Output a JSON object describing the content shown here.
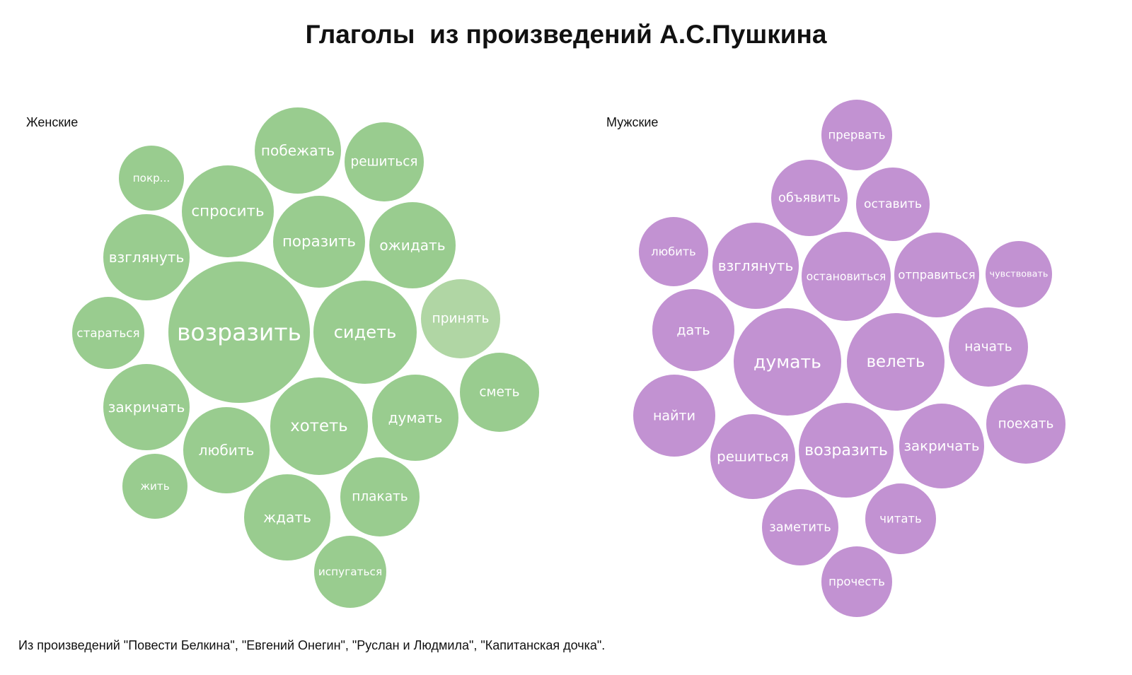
{
  "title": "Глаголы  из произведений А.С.Пушкина",
  "footnote": "Из произведений \"Повести Белкина\", \"Евгений Онегин\", \"Руслан и Людмила\", \"Капитанская дочка\".",
  "colors": {
    "female": "#99cc8f",
    "female_light": "#b0d6a4",
    "male": "#c292d2",
    "text": "#ffffff"
  },
  "chart_data": [
    {
      "type": "bubble",
      "series_name": "Женские",
      "bubbles": [
        {
          "label": "возразить",
          "size": 100
        },
        {
          "label": "сидеть",
          "size": 55
        },
        {
          "label": "хотеть",
          "size": 48
        },
        {
          "label": "спросить",
          "size": 43
        },
        {
          "label": "поразить",
          "size": 43
        },
        {
          "label": "побежать",
          "size": 38
        },
        {
          "label": "ожидать",
          "size": 38
        },
        {
          "label": "взглянуть",
          "size": 38
        },
        {
          "label": "закричать",
          "size": 38
        },
        {
          "label": "любить",
          "size": 38
        },
        {
          "label": "думать",
          "size": 38
        },
        {
          "label": "ждать",
          "size": 38
        },
        {
          "label": "решиться",
          "size": 32
        },
        {
          "label": "принять",
          "size": 32
        },
        {
          "label": "сметь",
          "size": 32
        },
        {
          "label": "плакать",
          "size": 32
        },
        {
          "label": "старaться",
          "size": 27
        },
        {
          "label": "испугаться",
          "size": 27
        },
        {
          "label": "покр...",
          "size": 22
        },
        {
          "label": "жить",
          "size": 22
        }
      ]
    },
    {
      "type": "bubble",
      "series_name": "Мужские",
      "bubbles": [
        {
          "label": "думать",
          "size": 59
        },
        {
          "label": "велеть",
          "size": 48
        },
        {
          "label": "возразить",
          "size": 44
        },
        {
          "label": "остановиться",
          "size": 40
        },
        {
          "label": "взглянуть",
          "size": 38
        },
        {
          "label": "отправиться",
          "size": 36
        },
        {
          "label": "решиться",
          "size": 36
        },
        {
          "label": "закричать",
          "size": 36
        },
        {
          "label": "дать",
          "size": 34
        },
        {
          "label": "найти",
          "size": 34
        },
        {
          "label": "начать",
          "size": 32
        },
        {
          "label": "поехать",
          "size": 32
        },
        {
          "label": "объявить",
          "size": 29
        },
        {
          "label": "оставить",
          "size": 28
        },
        {
          "label": "заметить",
          "size": 29
        },
        {
          "label": "прервать",
          "size": 26
        },
        {
          "label": "читать",
          "size": 26
        },
        {
          "label": "прочесть",
          "size": 26
        },
        {
          "label": "любить",
          "size": 24
        },
        {
          "label": "чувствовать",
          "size": 22
        }
      ]
    }
  ]
}
